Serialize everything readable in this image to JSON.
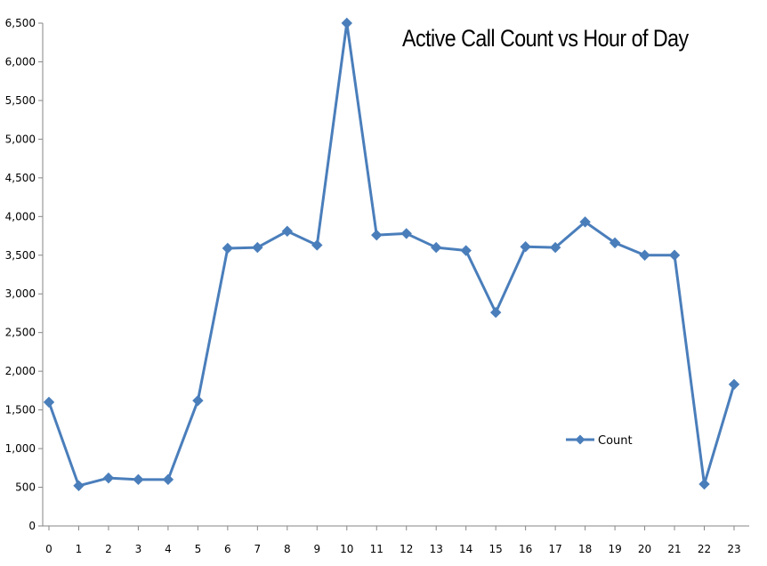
{
  "chart_data": {
    "type": "line",
    "title": "Active Call Count vs Hour of Day",
    "xlabel": "",
    "ylabel": "",
    "x": [
      0,
      1,
      2,
      3,
      4,
      5,
      6,
      7,
      8,
      9,
      10,
      11,
      12,
      13,
      14,
      15,
      16,
      17,
      18,
      19,
      20,
      21,
      22,
      23
    ],
    "series": [
      {
        "name": "Count",
        "values": [
          1600,
          520,
          620,
          600,
          600,
          1620,
          3590,
          3600,
          3810,
          3630,
          6500,
          3760,
          3780,
          3600,
          3560,
          2760,
          3610,
          3600,
          3930,
          3660,
          3500,
          3500,
          540,
          1830
        ]
      }
    ],
    "ylim": [
      0,
      6500
    ],
    "yticks": [
      0,
      500,
      1000,
      1500,
      2000,
      2500,
      3000,
      3500,
      4000,
      4500,
      5000,
      5500,
      6000,
      6500
    ],
    "ytick_labels": [
      "0",
      "500",
      "1,000",
      "1,500",
      "2,000",
      "2,500",
      "3,000",
      "3,500",
      "4,000",
      "4,500",
      "5,000",
      "5,500",
      "6,000",
      "6,500"
    ],
    "xtick_labels": [
      "0",
      "1",
      "2",
      "3",
      "4",
      "5",
      "6",
      "7",
      "8",
      "9",
      "10",
      "11",
      "12",
      "13",
      "14",
      "15",
      "16",
      "17",
      "18",
      "19",
      "20",
      "21",
      "22",
      "23"
    ],
    "grid": false,
    "legend": "center-right",
    "line_color": "#4a7ebb"
  }
}
